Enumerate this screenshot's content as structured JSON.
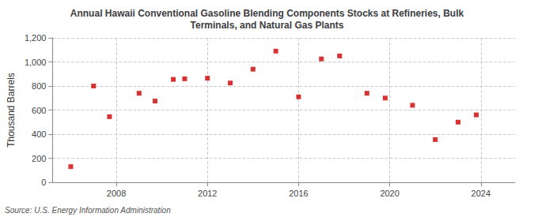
{
  "chart_data": {
    "type": "scatter",
    "title": "Annual Hawaii Conventional Gasoline Blending Components Stocks at Refineries, Bulk\nTerminals, and Natural Gas Plants",
    "ylabel": "Thousand Barrels",
    "annotations": [
      "Source: U.S. Energy Information Administration"
    ],
    "x": [
      2006,
      2007,
      2007.7,
      2009,
      2009.7,
      2010.5,
      2011,
      2012,
      2013,
      2014,
      2015,
      2016,
      2017,
      2017.8,
      2019,
      2019.8,
      2021,
      2022,
      2023,
      2023.8
    ],
    "values": [
      130,
      800,
      545,
      740,
      675,
      855,
      860,
      865,
      825,
      940,
      1090,
      710,
      1025,
      1050,
      740,
      700,
      640,
      355,
      500,
      560
    ],
    "color": "#cc0000",
    "marker": "square",
    "xlim": [
      2005.2,
      2025.5
    ],
    "xticks": [
      2008,
      2012,
      2016,
      2020,
      2024
    ],
    "ylim": [
      0,
      1200
    ],
    "yticks": [
      0,
      200,
      400,
      600,
      800,
      {
        "value": 1000,
        "label": "1,000"
      },
      {
        "value": 1200,
        "label": "1,200"
      }
    ],
    "grid": true
  }
}
